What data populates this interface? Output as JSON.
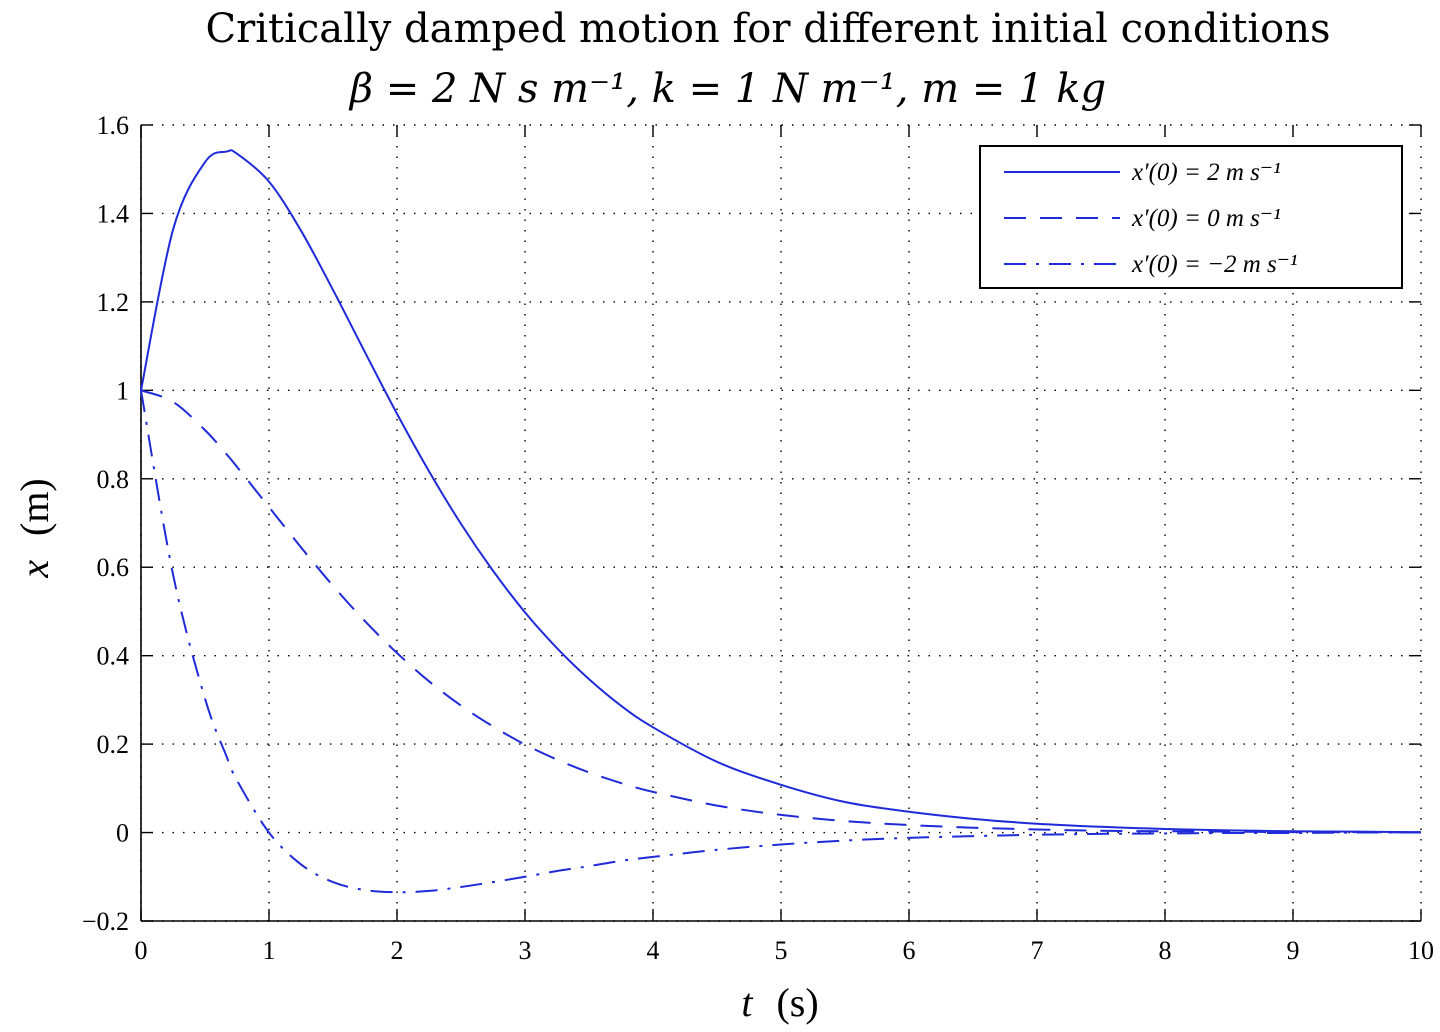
{
  "chart_data": {
    "type": "line",
    "title": "Critically damped motion for different initial conditions",
    "subtitle": "β = 2 N s m⁻¹, k = 1 N m⁻¹, m = 1 kg",
    "xlabel_var": "t",
    "xlabel_unit": "(s)",
    "ylabel_var": "x",
    "ylabel_unit": "(m)",
    "xlim": [
      0,
      10
    ],
    "ylim": [
      -0.2,
      1.6
    ],
    "xticks": [
      "0",
      "1",
      "2",
      "3",
      "4",
      "5",
      "6",
      "7",
      "8",
      "9",
      "10"
    ],
    "yticks": [
      "−0.2",
      "0",
      "0.2",
      "0.4",
      "0.6",
      "0.8",
      "1",
      "1.2",
      "1.4",
      "1.6"
    ],
    "grid": true,
    "legend_position": "top-right",
    "line_color": "#1f2bd9",
    "x": [
      0,
      0.25,
      0.5,
      0.67,
      0.75,
      1,
      1.25,
      1.5,
      1.75,
      2,
      2.25,
      2.5,
      2.75,
      3,
      3.25,
      3.5,
      3.75,
      4,
      4.5,
      5,
      5.5,
      6,
      6.5,
      7,
      7.5,
      8,
      8.5,
      9,
      9.5,
      10
    ],
    "series": [
      {
        "name": "x′(0) = 2 m s⁻¹",
        "style": "solid",
        "values": [
          1.0,
          1.363,
          1.516,
          1.54,
          1.535,
          1.472,
          1.361,
          1.227,
          1.086,
          0.947,
          0.817,
          0.698,
          0.592,
          0.498,
          0.417,
          0.347,
          0.287,
          0.238,
          0.16,
          0.108,
          0.069,
          0.047,
          0.031,
          0.02,
          0.013,
          0.008,
          0.005,
          0.003,
          0.002,
          0.001
        ]
      },
      {
        "name": "x′(0) = 0 m s⁻¹",
        "style": "dashed",
        "values": [
          1.0,
          0.974,
          0.91,
          0.855,
          0.827,
          0.736,
          0.645,
          0.558,
          0.478,
          0.406,
          0.342,
          0.287,
          0.24,
          0.199,
          0.165,
          0.136,
          0.112,
          0.092,
          0.061,
          0.04,
          0.026,
          0.017,
          0.011,
          0.007,
          0.004,
          0.003,
          0.002,
          0.001,
          0.001,
          0.0
        ]
      },
      {
        "name": "x′(0) = −2 m s⁻¹",
        "style": "dashdot",
        "values": [
          1.0,
          0.584,
          0.303,
          0.171,
          0.118,
          0.0,
          -0.072,
          -0.112,
          -0.13,
          -0.135,
          -0.132,
          -0.123,
          -0.112,
          -0.1,
          -0.087,
          -0.076,
          -0.064,
          -0.055,
          -0.039,
          -0.027,
          -0.018,
          -0.012,
          -0.008,
          -0.005,
          -0.003,
          -0.002,
          -0.001,
          -0.001,
          0.0,
          0.0
        ]
      }
    ]
  }
}
